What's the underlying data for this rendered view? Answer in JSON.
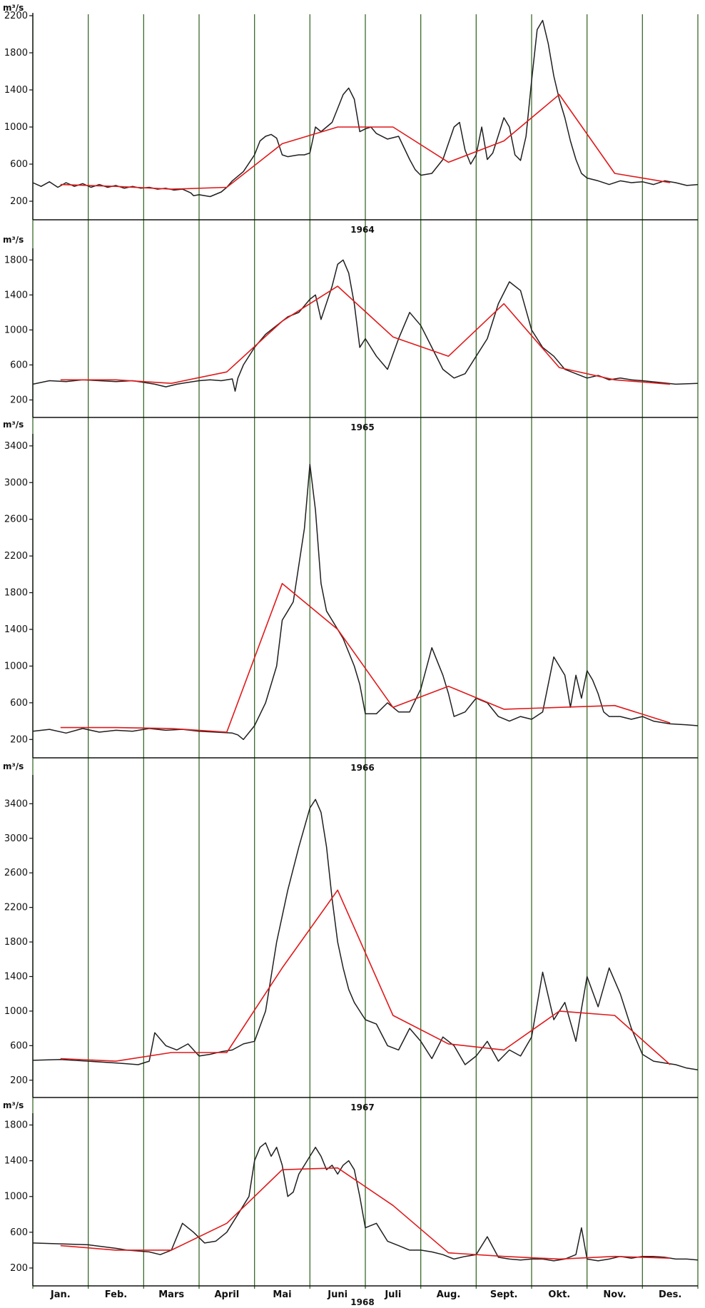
{
  "figure": {
    "y_unit": "m³/s",
    "months": [
      "Jan.",
      "Feb.",
      "Mars",
      "April",
      "Mai",
      "Juni",
      "Juli",
      "Aug.",
      "Sept.",
      "Okt.",
      "Nov.",
      "Des."
    ],
    "line_colors": {
      "daily": "#1f1f1f",
      "monthly_mean": "#e0191a",
      "month_gridline": "#3a6b2a"
    }
  },
  "chart_data": [
    {
      "type": "line",
      "year": "1964",
      "ylabel": "m³/s",
      "ylim": [
        0,
        2200
      ],
      "yticks": [
        "200",
        "600",
        "1000",
        "1400",
        "1800",
        "2200"
      ],
      "x_unit": "month (0 = 1 Jan, 12 = 31 Dec)",
      "series": [
        {
          "name": "daily",
          "x": [
            0,
            0.15,
            0.3,
            0.45,
            0.6,
            0.75,
            0.9,
            1.05,
            1.2,
            1.35,
            1.5,
            1.65,
            1.8,
            1.95,
            2.1,
            2.25,
            2.4,
            2.55,
            2.7,
            2.85,
            2.9,
            3.0,
            3.2,
            3.4,
            3.5,
            3.6,
            3.8,
            4.0,
            4.1,
            4.2,
            4.3,
            4.4,
            4.5,
            4.6,
            4.7,
            4.8,
            4.9,
            5.0,
            5.1,
            5.2,
            5.4,
            5.5,
            5.6,
            5.7,
            5.8,
            5.9,
            6.0,
            6.1,
            6.2,
            6.4,
            6.6,
            6.8,
            6.9,
            7.0,
            7.2,
            7.4,
            7.6,
            7.7,
            7.8,
            7.9,
            8.0,
            8.1,
            8.2,
            8.3,
            8.5,
            8.6,
            8.7,
            8.8,
            8.9,
            9.0,
            9.1,
            9.2,
            9.3,
            9.4,
            9.5,
            9.6,
            9.7,
            9.8,
            9.9,
            10.0,
            10.2,
            10.4,
            10.6,
            10.8,
            11.0,
            11.2,
            11.4,
            11.6,
            11.8,
            12.0
          ],
          "y": [
            400,
            360,
            410,
            350,
            400,
            360,
            390,
            350,
            380,
            350,
            370,
            340,
            360,
            340,
            350,
            330,
            340,
            320,
            330,
            290,
            260,
            270,
            250,
            300,
            350,
            420,
            520,
            700,
            850,
            900,
            920,
            880,
            700,
            680,
            690,
            700,
            700,
            720,
            1000,
            950,
            1050,
            1200,
            1350,
            1420,
            1300,
            950,
            980,
            1000,
            930,
            870,
            900,
            650,
            540,
            480,
            500,
            650,
            1000,
            1050,
            750,
            600,
            700,
            1000,
            650,
            720,
            1100,
            1000,
            700,
            640,
            900,
            1500,
            2050,
            2150,
            1900,
            1550,
            1300,
            1100,
            850,
            650,
            500,
            450,
            420,
            380,
            420,
            400,
            410,
            380,
            420,
            400,
            370,
            380
          ]
        },
        {
          "name": "monthly mean",
          "x": [
            0.5,
            1.5,
            2.5,
            3.5,
            4.5,
            5.5,
            6.5,
            7.5,
            8.5,
            9.5,
            10.5,
            11.5
          ],
          "y": [
            380,
            360,
            330,
            350,
            820,
            1000,
            1000,
            620,
            850,
            1350,
            500,
            400
          ]
        }
      ]
    },
    {
      "type": "line",
      "year": "1965",
      "ylabel": "m³/s",
      "ylim": [
        0,
        1900
      ],
      "yticks": [
        "200",
        "600",
        "1000",
        "1400",
        "1800"
      ],
      "x_unit": "month (0 = 1 Jan, 12 = 31 Dec)",
      "series": [
        {
          "name": "daily",
          "x": [
            0,
            0.3,
            0.6,
            0.9,
            1.2,
            1.5,
            1.8,
            2.0,
            2.2,
            2.4,
            2.6,
            2.8,
            3.0,
            3.2,
            3.4,
            3.6,
            3.65,
            3.7,
            3.8,
            4.0,
            4.2,
            4.4,
            4.6,
            4.8,
            5.0,
            5.1,
            5.2,
            5.4,
            5.5,
            5.6,
            5.7,
            5.8,
            5.9,
            6.0,
            6.2,
            6.4,
            6.6,
            6.8,
            7.0,
            7.2,
            7.4,
            7.6,
            7.8,
            8.0,
            8.2,
            8.4,
            8.6,
            8.8,
            9.0,
            9.2,
            9.4,
            9.6,
            9.8,
            10.0,
            10.2,
            10.4,
            10.6,
            10.8,
            11.0,
            11.3,
            11.6,
            12.0
          ],
          "y": [
            380,
            420,
            410,
            430,
            420,
            410,
            420,
            400,
            380,
            350,
            380,
            400,
            420,
            430,
            420,
            440,
            300,
            450,
            600,
            800,
            950,
            1050,
            1150,
            1200,
            1350,
            1400,
            1120,
            1500,
            1750,
            1800,
            1650,
            1300,
            800,
            900,
            700,
            550,
            900,
            1200,
            1050,
            800,
            550,
            450,
            500,
            700,
            900,
            1300,
            1550,
            1450,
            1000,
            800,
            700,
            550,
            500,
            450,
            480,
            430,
            450,
            430,
            420,
            400,
            380,
            390
          ]
        },
        {
          "name": "monthly mean",
          "x": [
            0.5,
            1.5,
            2.5,
            3.5,
            4.5,
            5.5,
            6.5,
            7.5,
            8.5,
            9.5,
            10.5,
            11.5
          ],
          "y": [
            430,
            430,
            390,
            520,
            1100,
            1500,
            920,
            700,
            1300,
            570,
            430,
            380
          ]
        }
      ]
    },
    {
      "type": "line",
      "year": "1966",
      "ylabel": "m³/s",
      "ylim": [
        0,
        3500
      ],
      "yticks": [
        "200",
        "600",
        "1000",
        "1400",
        "1800",
        "2200",
        "2600",
        "3000",
        "3400"
      ],
      "x_unit": "month (0 = 1 Jan, 12 = 31 Dec)",
      "series": [
        {
          "name": "daily",
          "x": [
            0,
            0.3,
            0.6,
            0.9,
            1.2,
            1.5,
            1.8,
            2.1,
            2.4,
            2.7,
            3.0,
            3.3,
            3.6,
            3.7,
            3.8,
            4.0,
            4.2,
            4.4,
            4.5,
            4.6,
            4.7,
            4.8,
            4.9,
            5.0,
            5.1,
            5.2,
            5.3,
            5.4,
            5.5,
            5.6,
            5.7,
            5.8,
            5.9,
            6.0,
            6.2,
            6.4,
            6.6,
            6.8,
            7.0,
            7.2,
            7.4,
            7.5,
            7.6,
            7.8,
            8.0,
            8.2,
            8.4,
            8.6,
            8.8,
            9.0,
            9.2,
            9.4,
            9.6,
            9.7,
            9.8,
            9.9,
            10.0,
            10.1,
            10.2,
            10.3,
            10.4,
            10.6,
            10.8,
            11.0,
            11.2,
            11.5,
            11.8,
            12.0
          ],
          "y": [
            290,
            310,
            270,
            320,
            280,
            300,
            290,
            320,
            300,
            310,
            290,
            280,
            270,
            250,
            200,
            350,
            600,
            1000,
            1500,
            1600,
            1700,
            2100,
            2500,
            3200,
            2700,
            1900,
            1600,
            1500,
            1400,
            1300,
            1150,
            1000,
            800,
            480,
            480,
            600,
            500,
            500,
            750,
            1200,
            900,
            700,
            450,
            500,
            650,
            600,
            450,
            400,
            450,
            420,
            500,
            1100,
            900,
            550,
            900,
            650,
            950,
            850,
            700,
            500,
            450,
            450,
            420,
            450,
            400,
            370,
            360,
            350
          ]
        },
        {
          "name": "monthly mean",
          "x": [
            0.5,
            1.5,
            2.5,
            3.5,
            4.5,
            5.5,
            6.5,
            7.5,
            8.5,
            9.5,
            10.5,
            11.5
          ],
          "y": [
            330,
            330,
            320,
            280,
            1900,
            1400,
            550,
            780,
            530,
            550,
            570,
            380
          ]
        }
      ]
    },
    {
      "type": "line",
      "year": "1967",
      "ylabel": "m³/s",
      "ylim": [
        0,
        3700
      ],
      "yticks": [
        "200",
        "600",
        "1000",
        "1400",
        "1800",
        "2200",
        "2600",
        "3000",
        "3400"
      ],
      "x_unit": "month (0 = 1 Jan, 12 = 31 Dec)",
      "series": [
        {
          "name": "daily",
          "x": [
            0,
            0.5,
            1.0,
            1.5,
            1.7,
            1.9,
            2.1,
            2.2,
            2.4,
            2.6,
            2.8,
            3.0,
            3.2,
            3.4,
            3.6,
            3.8,
            4.0,
            4.2,
            4.4,
            4.6,
            4.8,
            5.0,
            5.1,
            5.2,
            5.3,
            5.4,
            5.5,
            5.6,
            5.7,
            5.8,
            5.9,
            6.0,
            6.2,
            6.4,
            6.6,
            6.8,
            7.0,
            7.2,
            7.4,
            7.6,
            7.8,
            8.0,
            8.2,
            8.4,
            8.6,
            8.8,
            9.0,
            9.2,
            9.4,
            9.6,
            9.8,
            10.0,
            10.2,
            10.4,
            10.6,
            10.8,
            11.0,
            11.2,
            11.4,
            11.6,
            11.8,
            12.0
          ],
          "y": [
            430,
            440,
            420,
            400,
            390,
            380,
            420,
            750,
            600,
            550,
            620,
            480,
            500,
            530,
            550,
            620,
            650,
            1000,
            1800,
            2400,
            2900,
            3350,
            3450,
            3300,
            2900,
            2300,
            1800,
            1500,
            1250,
            1100,
            1000,
            900,
            850,
            600,
            550,
            800,
            650,
            450,
            700,
            600,
            380,
            480,
            650,
            420,
            550,
            480,
            700,
            1450,
            900,
            1100,
            650,
            1400,
            1050,
            1500,
            1200,
            800,
            500,
            420,
            400,
            380,
            340,
            320
          ]
        },
        {
          "name": "monthly mean",
          "x": [
            0.5,
            1.5,
            2.5,
            3.5,
            4.5,
            5.5,
            6.5,
            7.5,
            8.5,
            9.5,
            10.5,
            11.5
          ],
          "y": [
            450,
            420,
            520,
            520,
            1500,
            2400,
            950,
            620,
            550,
            1000,
            950,
            380
          ]
        }
      ]
    },
    {
      "type": "line",
      "year": "1968",
      "ylabel": "m³/s",
      "ylim": [
        0,
        1900
      ],
      "yticks": [
        "200",
        "600",
        "1000",
        "1400",
        "1800"
      ],
      "x_unit": "month (0 = 1 Jan, 12 = 31 Dec)",
      "series": [
        {
          "name": "daily",
          "x": [
            0,
            0.5,
            1.0,
            1.5,
            1.7,
            1.9,
            2.1,
            2.3,
            2.5,
            2.7,
            2.9,
            3.1,
            3.3,
            3.5,
            3.7,
            3.9,
            4.0,
            4.1,
            4.2,
            4.3,
            4.4,
            4.5,
            4.6,
            4.7,
            4.8,
            4.9,
            5.0,
            5.1,
            5.2,
            5.3,
            5.4,
            5.5,
            5.6,
            5.7,
            5.8,
            5.9,
            6.0,
            6.2,
            6.4,
            6.6,
            6.8,
            7.0,
            7.2,
            7.4,
            7.6,
            7.8,
            8.0,
            8.2,
            8.4,
            8.6,
            8.8,
            9.0,
            9.2,
            9.4,
            9.6,
            9.8,
            9.9,
            10.0,
            10.2,
            10.4,
            10.6,
            10.8,
            11.0,
            11.2,
            11.4,
            11.6,
            11.8,
            12.0
          ],
          "y": [
            480,
            470,
            460,
            420,
            400,
            390,
            380,
            350,
            400,
            700,
            600,
            480,
            500,
            600,
            800,
            1000,
            1400,
            1550,
            1600,
            1450,
            1550,
            1350,
            1000,
            1050,
            1250,
            1350,
            1450,
            1550,
            1450,
            1300,
            1350,
            1250,
            1350,
            1400,
            1300,
            1000,
            650,
            700,
            500,
            450,
            400,
            400,
            380,
            350,
            300,
            330,
            350,
            550,
            320,
            300,
            290,
            300,
            300,
            280,
            300,
            350,
            650,
            300,
            280,
            300,
            330,
            310,
            330,
            330,
            320,
            300,
            300,
            290
          ]
        },
        {
          "name": "monthly mean",
          "x": [
            0.5,
            1.5,
            2.5,
            3.5,
            4.5,
            5.5,
            6.5,
            7.5,
            8.5,
            9.5,
            10.5,
            11.5
          ],
          "y": [
            450,
            400,
            400,
            700,
            1300,
            1320,
            900,
            370,
            330,
            300,
            330,
            310
          ]
        }
      ]
    }
  ]
}
